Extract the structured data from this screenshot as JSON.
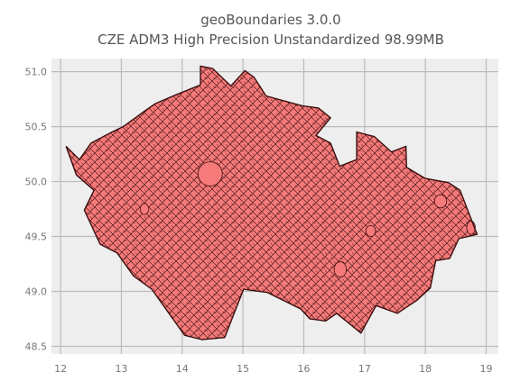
{
  "chart_data": {
    "type": "map",
    "title_line1": "geoBoundaries 3.0.0",
    "title_line2": "CZE ADM3 High Precision Unstandardized 98.99MB",
    "xlabel": "",
    "ylabel": "",
    "x_ticks": [
      12,
      13,
      14,
      15,
      16,
      17,
      18,
      19
    ],
    "y_ticks": [
      48.5,
      49.0,
      49.5,
      50.0,
      50.5,
      51.0
    ],
    "x_tick_labels": [
      "12",
      "13",
      "14",
      "15",
      "16",
      "17",
      "18",
      "19"
    ],
    "y_tick_labels": [
      "48.5",
      "49.0",
      "49.5",
      "50.0",
      "50.5",
      "51.0"
    ],
    "xlim": [
      11.85,
      19.2
    ],
    "ylim": [
      48.43,
      51.12
    ],
    "grid": true,
    "fill_color": "#f77a7a",
    "edge_color": "#3a0f0f",
    "background_color": "#eeeeee",
    "grid_color": "#bbbbbb",
    "outline_lonlat": [
      [
        12.09,
        50.32
      ],
      [
        12.31,
        50.2
      ],
      [
        12.5,
        50.35
      ],
      [
        12.84,
        50.45
      ],
      [
        13.03,
        50.5
      ],
      [
        13.38,
        50.64
      ],
      [
        13.56,
        50.71
      ],
      [
        13.9,
        50.79
      ],
      [
        14.3,
        50.88
      ],
      [
        14.3,
        51.05
      ],
      [
        14.5,
        51.03
      ],
      [
        14.8,
        50.87
      ],
      [
        15.03,
        51.01
      ],
      [
        15.18,
        50.95
      ],
      [
        15.38,
        50.78
      ],
      [
        15.97,
        50.69
      ],
      [
        16.24,
        50.67
      ],
      [
        16.44,
        50.58
      ],
      [
        16.2,
        50.42
      ],
      [
        16.44,
        50.35
      ],
      [
        16.59,
        50.14
      ],
      [
        16.87,
        50.2
      ],
      [
        16.87,
        50.45
      ],
      [
        17.16,
        50.41
      ],
      [
        17.44,
        50.27
      ],
      [
        17.68,
        50.32
      ],
      [
        17.69,
        50.13
      ],
      [
        17.99,
        50.03
      ],
      [
        18.38,
        49.99
      ],
      [
        18.57,
        49.92
      ],
      [
        18.85,
        49.52
      ],
      [
        18.55,
        49.48
      ],
      [
        18.4,
        49.3
      ],
      [
        18.17,
        49.28
      ],
      [
        18.08,
        49.03
      ],
      [
        17.86,
        48.92
      ],
      [
        17.54,
        48.8
      ],
      [
        17.19,
        48.87
      ],
      [
        16.94,
        48.62
      ],
      [
        16.54,
        48.8
      ],
      [
        16.36,
        48.73
      ],
      [
        16.1,
        48.75
      ],
      [
        15.95,
        48.84
      ],
      [
        15.4,
        48.99
      ],
      [
        15.01,
        49.02
      ],
      [
        14.7,
        48.58
      ],
      [
        14.33,
        48.56
      ],
      [
        14.04,
        48.6
      ],
      [
        13.82,
        48.77
      ],
      [
        13.5,
        49.02
      ],
      [
        13.2,
        49.14
      ],
      [
        12.93,
        49.35
      ],
      [
        12.65,
        49.43
      ],
      [
        12.39,
        49.74
      ],
      [
        12.55,
        49.92
      ],
      [
        12.26,
        50.06
      ],
      [
        12.09,
        50.32
      ]
    ],
    "highlight_regions_lonlat": [
      {
        "center": [
          14.46,
          50.07
        ],
        "rx": 0.2,
        "ry": 0.11
      },
      {
        "center": [
          16.6,
          49.2
        ],
        "rx": 0.1,
        "ry": 0.07
      },
      {
        "center": [
          18.25,
          49.82
        ],
        "rx": 0.1,
        "ry": 0.06
      },
      {
        "center": [
          13.38,
          49.75
        ],
        "rx": 0.07,
        "ry": 0.05
      },
      {
        "center": [
          17.1,
          49.55
        ],
        "rx": 0.08,
        "ry": 0.05
      },
      {
        "center": [
          18.75,
          49.58
        ],
        "rx": 0.07,
        "ry": 0.06
      }
    ]
  }
}
